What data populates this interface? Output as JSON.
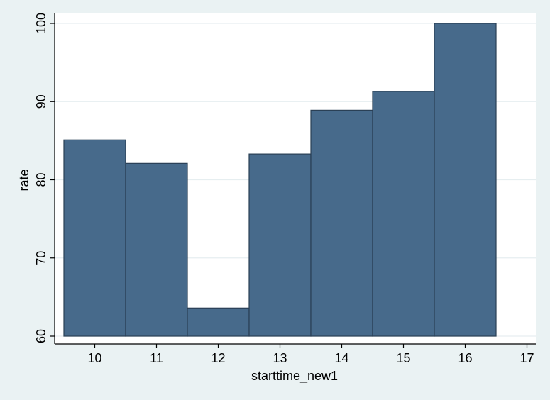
{
  "chart_data": {
    "type": "bar",
    "x": [
      10,
      11,
      12,
      13,
      14,
      15,
      16
    ],
    "values": [
      85.1,
      82.1,
      63.6,
      83.3,
      88.9,
      91.3,
      100.0
    ],
    "xlabel": "starttime_new1",
    "ylabel": "rate",
    "xlim": [
      9.5,
      17
    ],
    "ylim": [
      60,
      100
    ],
    "xticks": [
      10,
      11,
      12,
      13,
      14,
      15,
      16,
      17
    ],
    "yticks": [
      60,
      70,
      80,
      90,
      100
    ],
    "grid": true,
    "legend": "none",
    "colors": {
      "bar_fill": "#476a8b",
      "bar_stroke": "#2a3f55",
      "plot_background": "#ffffff",
      "page_background": "#eaf2f3",
      "grid": "#e6eef0"
    }
  }
}
